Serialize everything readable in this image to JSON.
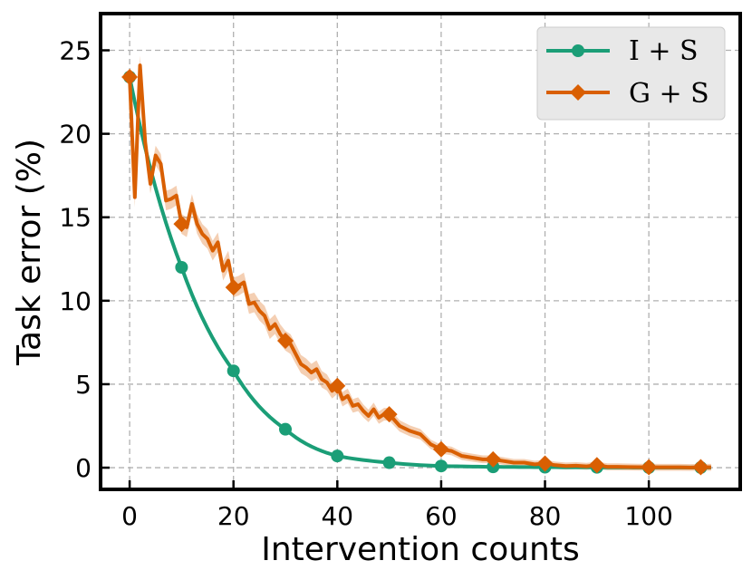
{
  "chart_data": {
    "type": "line",
    "title": "",
    "xlabel": "Intervention counts",
    "ylabel": "Task error (%)",
    "xlim": [
      -5.6,
      117.6
    ],
    "ylim": [
      -1.3,
      27.2
    ],
    "xticks": [
      0,
      20,
      40,
      60,
      80,
      100
    ],
    "yticks": [
      0,
      5,
      10,
      15,
      20,
      25
    ],
    "grid": true,
    "legend_position": "top-right",
    "series": [
      {
        "name": "I + S",
        "color": "#1b9e77",
        "marker": "circle",
        "x": [
          0,
          10,
          20,
          30,
          40,
          50,
          60,
          70,
          80,
          90,
          100,
          110
        ],
        "y": [
          23.4,
          12.0,
          5.8,
          2.3,
          0.7,
          0.3,
          0.1,
          0.05,
          0.03,
          0.02,
          0.01,
          0.01
        ]
      },
      {
        "name": "G + S",
        "color": "#d95f02",
        "marker": "diamond",
        "x": [
          0,
          1,
          2,
          3,
          4,
          5,
          6,
          7,
          8,
          9,
          10,
          11,
          12,
          13,
          14,
          15,
          16,
          17,
          18,
          19,
          20,
          21,
          22,
          23,
          24,
          25,
          26,
          27,
          28,
          29,
          30,
          31,
          32,
          33,
          34,
          35,
          36,
          37,
          38,
          39,
          40,
          41,
          42,
          43,
          44,
          45,
          46,
          47,
          48,
          49,
          50,
          52,
          54,
          56,
          58,
          60,
          62,
          64,
          66,
          68,
          70,
          72,
          74,
          76,
          78,
          80,
          82,
          84,
          86,
          88,
          90,
          92,
          94,
          96,
          98,
          100,
          102,
          104,
          106,
          108,
          110,
          112
        ],
        "y": [
          23.4,
          16.2,
          24.1,
          19.5,
          17.0,
          18.7,
          18.2,
          16.0,
          16.1,
          16.3,
          14.6,
          14.4,
          15.8,
          14.6,
          14.0,
          13.7,
          13.0,
          13.5,
          11.8,
          12.4,
          10.8,
          10.9,
          11.1,
          9.8,
          9.9,
          9.4,
          9.1,
          8.3,
          8.6,
          8.0,
          7.6,
          7.4,
          6.8,
          6.2,
          6.0,
          5.7,
          5.9,
          5.3,
          5.1,
          4.6,
          4.9,
          4.1,
          4.3,
          3.7,
          3.8,
          3.4,
          3.1,
          3.5,
          3.0,
          3.2,
          3.2,
          2.5,
          2.2,
          2.0,
          1.4,
          1.1,
          1.0,
          0.7,
          0.6,
          0.5,
          0.5,
          0.4,
          0.3,
          0.3,
          0.2,
          0.25,
          0.15,
          0.1,
          0.12,
          0.08,
          0.15,
          0.05,
          0.05,
          0.04,
          0.03,
          0.03,
          0.02,
          0.02,
          0.02,
          0.01,
          0.03,
          0.02
        ],
        "marker_x": [
          0,
          10,
          20,
          30,
          40,
          50,
          60,
          70,
          80,
          90,
          100,
          110
        ],
        "marker_y": [
          23.4,
          14.6,
          10.8,
          7.6,
          4.9,
          3.2,
          1.1,
          0.5,
          0.25,
          0.15,
          0.03,
          0.03
        ],
        "band_halfwidth": 0.55
      }
    ]
  }
}
